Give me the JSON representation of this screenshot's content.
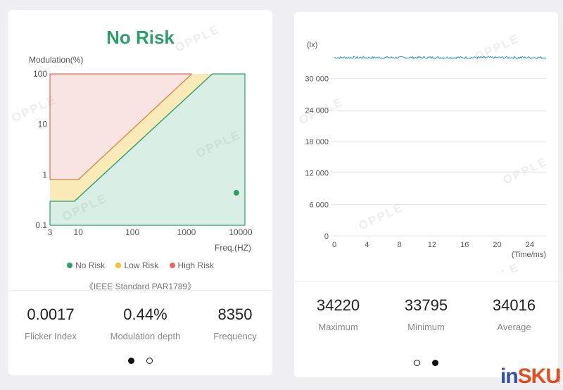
{
  "left_card": {
    "risk_title": "No Risk",
    "risk_title_color": "#2e9e6a",
    "legend": [
      {
        "label": "No Risk",
        "color": "#2e9e6a"
      },
      {
        "label": "Low Risk",
        "color": "#f2c233"
      },
      {
        "label": "High Risk",
        "color": "#e36b5e"
      }
    ],
    "standard_text": "《IEEE Standard PAR1789》",
    "stats": [
      {
        "value": "0.0017",
        "label": "Flicker Index"
      },
      {
        "value": "0.44%",
        "label": "Modulation depth"
      },
      {
        "value": "8350",
        "label": "Frequency"
      }
    ],
    "watermark": "OPPLE",
    "pager": {
      "active_index": 0,
      "count": 2
    }
  },
  "right_card": {
    "stats": [
      {
        "value": "34220",
        "label": "Maximum"
      },
      {
        "value": "33795",
        "label": "Minimum"
      },
      {
        "value": "34016",
        "label": "Average"
      }
    ],
    "watermark": "OPPLE",
    "pager": {
      "active_index": 1,
      "count": 2
    }
  },
  "brand": {
    "part1": "in",
    "part2": "SKU",
    "suffix": ".com"
  },
  "chart_data": [
    {
      "type": "area",
      "title": "",
      "xlabel": "Freq.(HZ)",
      "ylabel": "Modulation(%)",
      "x_scale": "log",
      "y_scale": "log",
      "xlim": [
        3,
        12000
      ],
      "ylim": [
        0.1,
        100
      ],
      "x_ticks": [
        3,
        10,
        100,
        1000,
        10000
      ],
      "x_tick_labels": [
        "3",
        "10",
        "100",
        "1000",
        "10000"
      ],
      "y_ticks": [
        0.1,
        1,
        10,
        100
      ],
      "y_tick_labels": [
        "0.1",
        "1",
        "10",
        "100"
      ],
      "regions": [
        {
          "name": "No Risk",
          "color": "#2e9e6a",
          "boundary": [
            [
              3,
              0.3
            ],
            [
              8.5,
              0.3
            ],
            [
              3000,
              100
            ]
          ]
        },
        {
          "name": "Low Risk",
          "color": "#f2c233",
          "boundary": [
            [
              3,
              0.8
            ],
            [
              10,
              0.8
            ],
            [
              1250,
              100
            ]
          ]
        },
        {
          "name": "High Risk",
          "color": "#e36b5e",
          "region": "above low-risk boundary"
        }
      ],
      "point": {
        "x": 8350,
        "y": 0.44,
        "color": "#2e9e6a"
      }
    },
    {
      "type": "line",
      "title": "",
      "xlabel": "(Time/ms)",
      "ylabel": "(lx)",
      "xlim": [
        0,
        26
      ],
      "ylim": [
        0,
        36000
      ],
      "x_ticks": [
        0,
        4,
        8,
        12,
        16,
        20,
        24
      ],
      "x_tick_labels": [
        "0",
        "4",
        "8",
        "12",
        "16",
        "20",
        "24"
      ],
      "y_ticks": [
        0,
        6000,
        12000,
        18000,
        24000,
        30000
      ],
      "y_tick_labels": [
        "0",
        "6 000",
        "12 000",
        "18 000",
        "24 000",
        "30 000"
      ],
      "grid": true,
      "series": [
        {
          "color": "#3a9bd9",
          "x": [
            0,
            26
          ],
          "y": [
            34016,
            34016
          ],
          "range": [
            33795,
            34220
          ]
        }
      ]
    }
  ]
}
